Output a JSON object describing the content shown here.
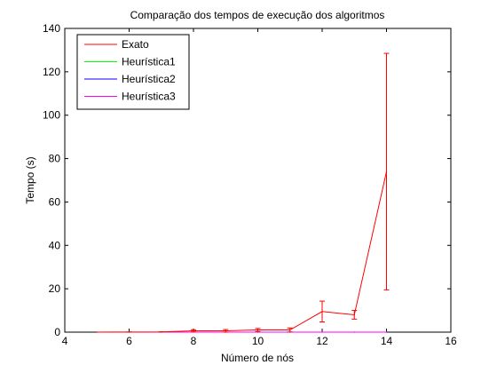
{
  "chart_data": {
    "type": "line",
    "title": "Comparação dos tempos de execução dos algoritmos",
    "xlabel": "Número de nós",
    "ylabel": "Tempo (s)",
    "xlim": [
      4,
      16
    ],
    "ylim": [
      0,
      140
    ],
    "xticks": [
      4,
      6,
      8,
      10,
      12,
      14,
      16
    ],
    "yticks": [
      0,
      20,
      40,
      60,
      80,
      100,
      120,
      140
    ],
    "grid": false,
    "legend_position": "top-left",
    "series": [
      {
        "name": "Exato",
        "color": "#ff0000",
        "x": [
          5,
          6,
          7,
          8,
          9,
          10,
          11,
          12,
          13,
          14
        ],
        "y": [
          0.01,
          0.05,
          0.1,
          0.6,
          0.6,
          1.0,
          1.0,
          9.5,
          8.0,
          74.0
        ],
        "error": [
          0.0,
          0.02,
          0.05,
          0.5,
          0.6,
          0.7,
          0.9,
          4.8,
          2.0,
          54.5
        ]
      },
      {
        "name": "Heurística1",
        "color": "#00ff00",
        "x": [
          5,
          6,
          7,
          8,
          9,
          10,
          11,
          12,
          13,
          14
        ],
        "y": [
          0,
          0,
          0,
          0,
          0,
          0,
          0,
          0,
          0,
          0
        ]
      },
      {
        "name": "Heurística2",
        "color": "#0000ff",
        "x": [
          5,
          6,
          7,
          8,
          9,
          10,
          11,
          12,
          13,
          14
        ],
        "y": [
          0,
          0,
          0,
          0,
          0,
          0,
          0,
          0,
          0,
          0
        ]
      },
      {
        "name": "Heurística3",
        "color": "#ff00ff",
        "x": [
          5,
          6,
          7,
          8,
          9,
          10,
          11,
          12,
          13,
          14
        ],
        "y": [
          0,
          0,
          0,
          0,
          0,
          0,
          0,
          0,
          0,
          0
        ]
      }
    ]
  }
}
